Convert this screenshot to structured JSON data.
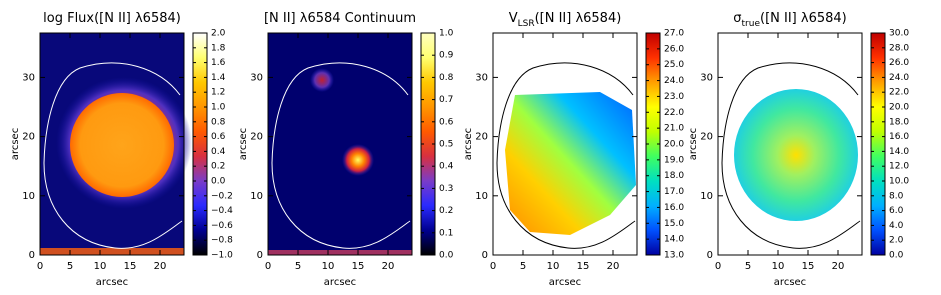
{
  "chart_data": [
    {
      "type": "heatmap",
      "title": [
        "log Flux([N II] λ6584)"
      ],
      "xlabel": "arcsec",
      "ylabel": "arcsec",
      "xlim": [
        0,
        24
      ],
      "ylim": [
        0,
        37.5
      ],
      "xticks": [
        0,
        5,
        10,
        15,
        20
      ],
      "yticks": [
        0,
        10,
        20,
        30
      ],
      "colorbar": {
        "lim": [
          -1,
          2
        ],
        "colormap": [
          "#000000",
          "#000090",
          "#2a2aff",
          "#7a3cc8",
          "#d83040",
          "#ff5a00",
          "#ff9600",
          "#ffc800",
          "#ffff70",
          "#ffffff"
        ],
        "ticks": [
          {
            "value": -1,
            "label": "−1.0"
          },
          {
            "value": -0.8,
            "label": "−0.8"
          },
          {
            "value": -0.6,
            "label": "−0.6"
          },
          {
            "value": -0.4,
            "label": "−0.4"
          },
          {
            "value": -0.2,
            "label": "−0.2"
          },
          {
            "value": 0,
            "label": "0.0"
          },
          {
            "value": 0.2,
            "label": "0.2"
          },
          {
            "value": 0.4,
            "label": "0.4"
          },
          {
            "value": 0.6,
            "label": "0.6"
          },
          {
            "value": 0.8,
            "label": "0.8"
          },
          {
            "value": 1,
            "label": "1.0"
          },
          {
            "value": 1.2,
            "label": "1.2"
          },
          {
            "value": 1.4,
            "label": "1.4"
          },
          {
            "value": 1.6,
            "label": "1.6"
          },
          {
            "value": 1.8,
            "label": "1.8"
          },
          {
            "value": 2,
            "label": "2.0"
          }
        ]
      }
    },
    {
      "type": "heatmap",
      "title": [
        "[N II] λ6584 Continuum"
      ],
      "xlabel": "arcsec",
      "ylabel": "arcsec",
      "xlim": [
        0,
        24
      ],
      "ylim": [
        0,
        37.5
      ],
      "xticks": [
        0,
        5,
        10,
        15,
        20
      ],
      "yticks": [
        0,
        10,
        20,
        30
      ],
      "colorbar": {
        "lim": [
          0,
          1
        ],
        "colormap": [
          "#000000",
          "#000090",
          "#2a2aff",
          "#7a3cc8",
          "#d83040",
          "#ff5a00",
          "#ff9600",
          "#ffc800",
          "#ffff70",
          "#ffffc0"
        ],
        "ticks": [
          {
            "value": 0,
            "label": "0.0"
          },
          0.1,
          0.2,
          0.3,
          0.4,
          0.5,
          0.6,
          0.7,
          0.8,
          0.9,
          {
            "value": 1,
            "label": "1.0"
          }
        ]
      }
    },
    {
      "type": "heatmap",
      "title": [
        "V",
        "LSR",
        "([N II] λ6584)"
      ],
      "xlabel": "arcsec",
      "ylabel": "arcsec",
      "xlim": [
        0,
        24
      ],
      "ylim": [
        0,
        37.5
      ],
      "xticks": [
        0,
        5,
        10,
        15,
        20
      ],
      "yticks": [
        0,
        10,
        20,
        30
      ],
      "colorbar": {
        "lim": [
          13,
          27
        ],
        "colormap": [
          "#0000a0",
          "#0050ff",
          "#00b0ff",
          "#00e0c0",
          "#40ff60",
          "#c0ff00",
          "#ffff00",
          "#ffa000",
          "#ff3000",
          "#c00000"
        ],
        "ticks": [
          {
            "value": 13,
            "label": "13.0"
          },
          {
            "value": 14,
            "label": "14.0"
          },
          {
            "value": 15,
            "label": "15.0"
          },
          {
            "value": 16,
            "label": "16.0"
          },
          {
            "value": 17,
            "label": "17.0"
          },
          {
            "value": 18,
            "label": "18.0"
          },
          {
            "value": 19,
            "label": "19.0"
          },
          {
            "value": 20,
            "label": "20.0"
          },
          {
            "value": 21,
            "label": "21.0"
          },
          {
            "value": 22,
            "label": "22.0"
          },
          {
            "value": 23,
            "label": "23.0"
          },
          {
            "value": 24,
            "label": "24.0"
          },
          {
            "value": 25,
            "label": "25.0"
          },
          {
            "value": 26,
            "label": "26.0"
          },
          {
            "value": 27,
            "label": "27.0"
          }
        ]
      }
    },
    {
      "type": "heatmap",
      "title": [
        "σ",
        "true",
        "([N II] λ6584)"
      ],
      "xlabel": "arcsec",
      "ylabel": "arcsec",
      "xlim": [
        0,
        24
      ],
      "ylim": [
        0,
        37.5
      ],
      "xticks": [
        0,
        5,
        10,
        15,
        20
      ],
      "yticks": [
        0,
        10,
        20,
        30
      ],
      "colorbar": {
        "lim": [
          0,
          30
        ],
        "colormap": [
          "#0000a0",
          "#0050ff",
          "#00b0ff",
          "#00e0c0",
          "#40ff60",
          "#c0ff00",
          "#ffff00",
          "#ffa000",
          "#ff3000",
          "#c00000"
        ],
        "ticks": [
          {
            "value": 0,
            "label": "0.0"
          },
          {
            "value": 2,
            "label": "2.0"
          },
          {
            "value": 4,
            "label": "4.0"
          },
          {
            "value": 6,
            "label": "6.0"
          },
          {
            "value": 8,
            "label": "8.0"
          },
          {
            "value": 10,
            "label": "10.0"
          },
          {
            "value": 12,
            "label": "12.0"
          },
          {
            "value": 14,
            "label": "14.0"
          },
          {
            "value": 16,
            "label": "16.0"
          },
          {
            "value": 18,
            "label": "18.0"
          },
          {
            "value": 20,
            "label": "20.0"
          },
          {
            "value": 22,
            "label": "22.0"
          },
          {
            "value": 24,
            "label": "24.0"
          },
          {
            "value": 26,
            "label": "26.0"
          },
          {
            "value": 28,
            "label": "28.0"
          },
          {
            "value": 30,
            "label": "30.0"
          }
        ]
      }
    }
  ]
}
